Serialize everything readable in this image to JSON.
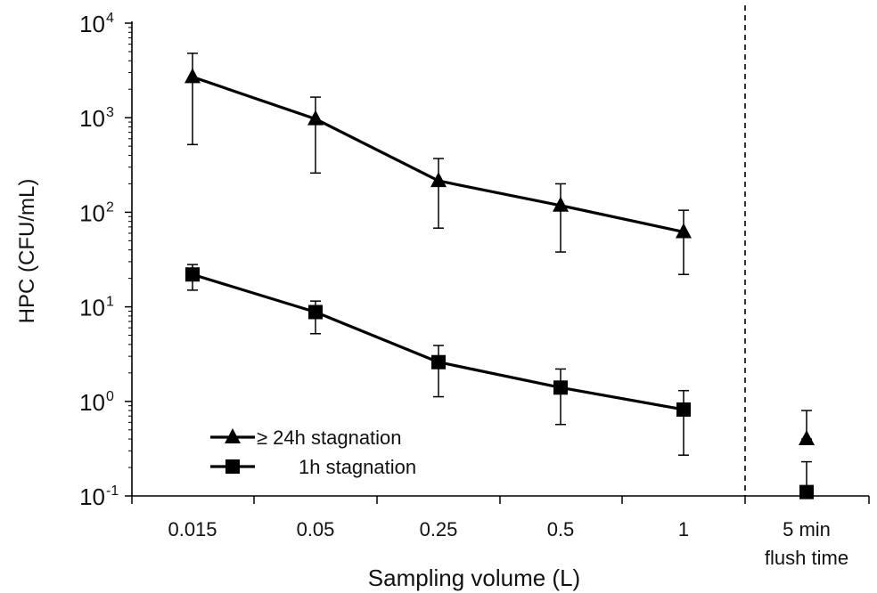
{
  "chart_data": {
    "type": "line",
    "ylabel": "HPC (CFU/mL)",
    "xlabel": "Sampling volume (L)",
    "y_scale": "log",
    "ylim": [
      0.1,
      10000
    ],
    "y_ticks": [
      {
        "value": 0.1,
        "base": "10",
        "exp": "-1"
      },
      {
        "value": 1,
        "base": "10",
        "exp": "0"
      },
      {
        "value": 10,
        "base": "10",
        "exp": "1"
      },
      {
        "value": 100,
        "base": "10",
        "exp": "2"
      },
      {
        "value": 1000,
        "base": "10",
        "exp": "3"
      },
      {
        "value": 10000,
        "base": "10",
        "exp": "4"
      }
    ],
    "categories": [
      "0.015",
      "0.05",
      "0.25",
      "0.5",
      "1"
    ],
    "extra_category": {
      "line1": "5 min",
      "line2": "flush time"
    },
    "grid": false,
    "legend_position": "bottom-left",
    "series": [
      {
        "name": "≥ 24h stagnation",
        "marker": "triangle",
        "values": [
          2700,
          970,
          215,
          118,
          62
        ],
        "err_low": [
          520,
          260,
          68,
          38,
          22
        ],
        "err_high": [
          4800,
          1650,
          370,
          200,
          105
        ],
        "flush": {
          "value": 0.4,
          "err_low": 0.4,
          "err_high": 0.8
        }
      },
      {
        "name": "1h stagnation",
        "marker": "square",
        "values": [
          22,
          8.8,
          2.6,
          1.4,
          0.82
        ],
        "err_low": [
          15,
          5.2,
          1.12,
          0.57,
          0.27
        ],
        "err_high": [
          28,
          11.5,
          3.9,
          2.2,
          1.3
        ],
        "flush": {
          "value": 0.11,
          "err_low": 0.11,
          "err_high": 0.23
        }
      }
    ],
    "color": "#000000"
  }
}
